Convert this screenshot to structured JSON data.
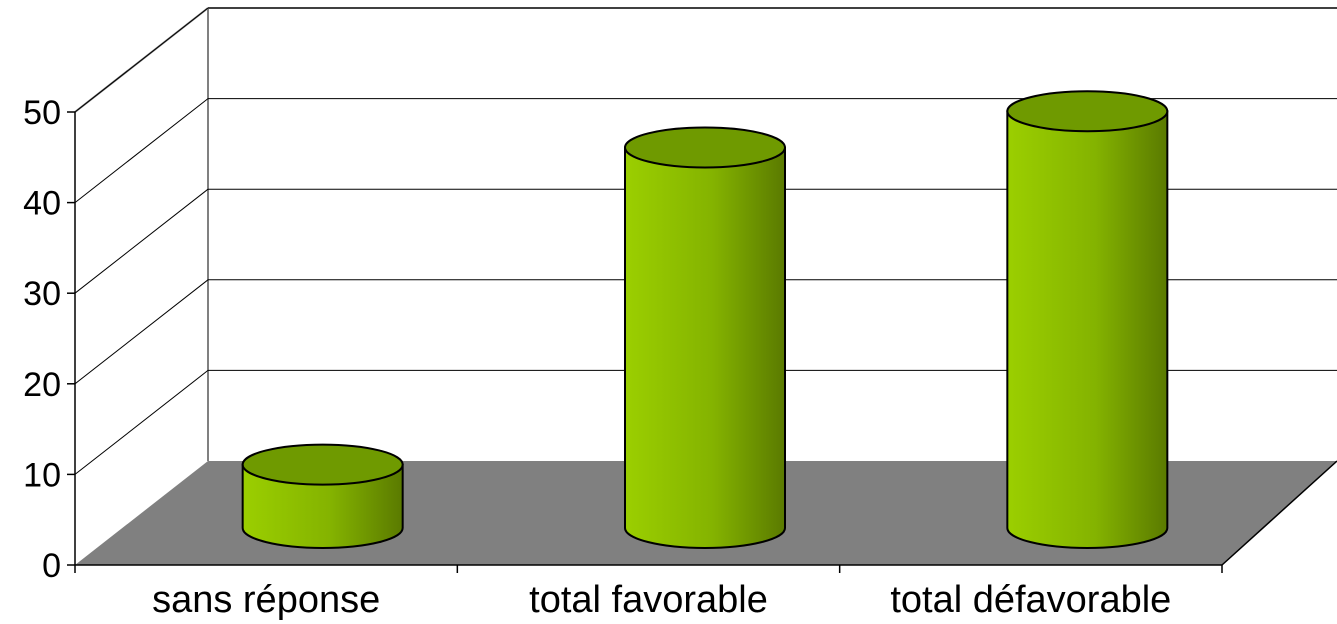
{
  "chart_data": {
    "type": "bar",
    "style": "3d-cylinder",
    "categories": [
      "sans réponse",
      "total favorable",
      "total défavorable"
    ],
    "values": [
      7,
      42,
      46
    ],
    "ylim": [
      0,
      50
    ],
    "yticks": [
      0,
      10,
      20,
      30,
      40,
      50
    ],
    "grid": true,
    "legend": "none",
    "title": "",
    "xlabel": "",
    "ylabel": "",
    "colors": {
      "bar_light": "#9bcf00",
      "bar_dark": "#5a7a00",
      "bar_top": "#6f9a00",
      "floor": "#808080",
      "wall_line": "#808080",
      "grid": "#000000"
    }
  }
}
